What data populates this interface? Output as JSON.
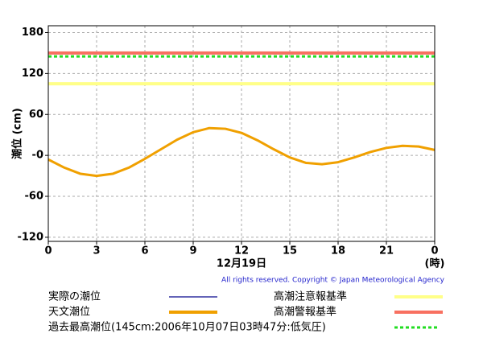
{
  "chart_data": {
    "type": "line",
    "ylabel": "潮位 (cm)",
    "xlabel": "12月19日",
    "xunit": "(時)",
    "copyright": "All rights reserved. Copyright © Japan Meteorological Agency",
    "x": [
      0,
      1,
      2,
      3,
      4,
      5,
      6,
      7,
      8,
      9,
      10,
      11,
      12,
      13,
      14,
      15,
      16,
      17,
      18,
      19,
      20,
      21,
      22,
      23,
      24
    ],
    "xlim": [
      0,
      24
    ],
    "xticks": [
      0,
      3,
      6,
      9,
      12,
      15,
      18,
      21,
      {
        "value": 24,
        "label": "0"
      }
    ],
    "ylim": [
      -126,
      190
    ],
    "yticks": [
      {
        "value": -120,
        "label": "-120"
      },
      {
        "value": -60,
        "label": "-60"
      },
      {
        "value": 0,
        "label": "-0"
      },
      60,
      120,
      180
    ],
    "grid": true,
    "series": [
      {
        "name": "実際の潮位",
        "color": "#3030a0",
        "values": [
          null,
          null,
          null,
          null,
          null,
          null,
          null,
          null,
          null,
          null,
          null,
          null,
          null,
          null,
          null,
          null,
          null,
          null,
          null,
          null,
          null,
          null,
          null,
          null,
          null
        ]
      },
      {
        "name": "天文潮位",
        "color": "#f0a000",
        "values": [
          -6,
          -18,
          -27,
          -30,
          -27,
          -18,
          -5,
          9,
          23,
          34,
          40,
          39,
          33,
          22,
          9,
          -3,
          -11,
          -13,
          -10,
          -3,
          5,
          11,
          14,
          13,
          8
        ]
      }
    ],
    "reference_lines": [
      {
        "name": "高潮注意報基準",
        "value": 105,
        "color": "#ffff88",
        "dash": false
      },
      {
        "name": "高潮警報基準",
        "value": 150,
        "color": "#f87060",
        "dash": false
      },
      {
        "name": "過去最高潮位(145cm:2006年10月07日03時47分:低気圧)",
        "value": 145,
        "color": "#22dd22",
        "dash": true
      }
    ]
  }
}
